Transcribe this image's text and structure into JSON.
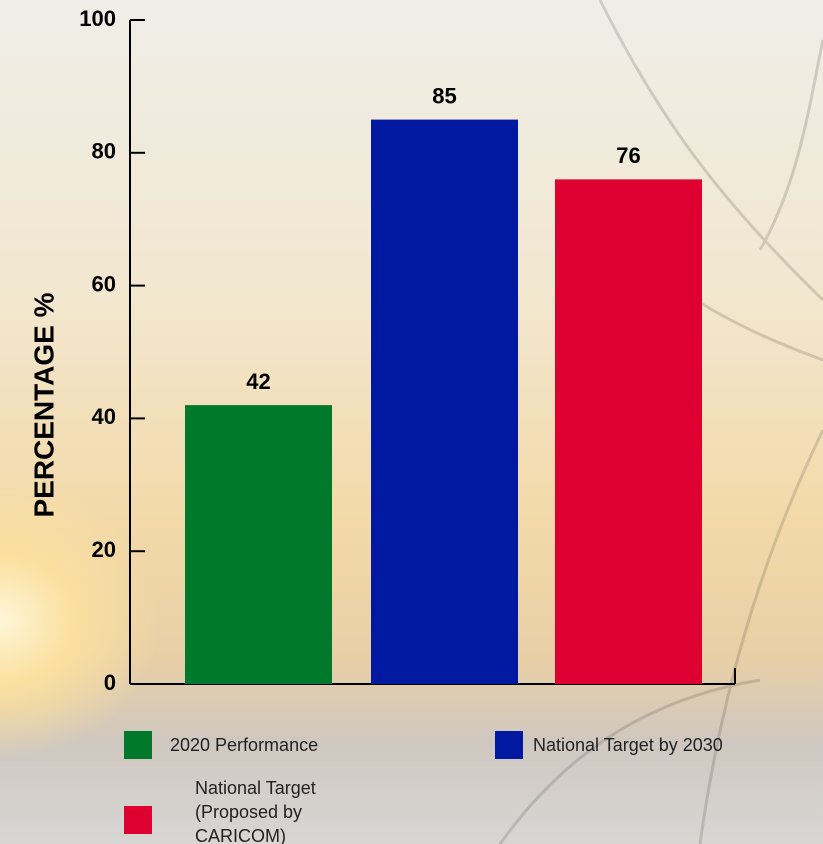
{
  "chart_data": {
    "type": "bar",
    "y_label": "PERCENTAGE %",
    "categories": [
      "2020 Performance",
      "National Target by 2030",
      "National Target (Proposed by CARICOM)"
    ],
    "values": [
      42,
      85,
      76
    ],
    "colors": [
      "#007a2a",
      "#0019a0",
      "#dd0030"
    ],
    "ylim": [
      0,
      100
    ],
    "yticks": [
      0,
      20,
      40,
      60,
      80,
      100
    ],
    "grid": false
  }
}
